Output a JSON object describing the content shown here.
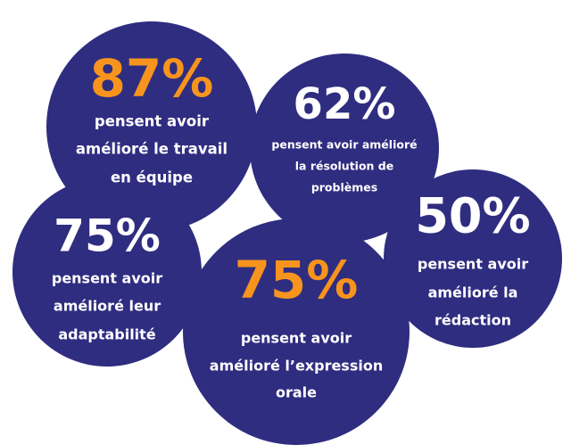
{
  "bubbles": [
    {
      "percent": "87%",
      "color": "#f7941d",
      "lines": [
        "pensent avoir",
        "amélioré le travail",
        "en équipe"
      ]
    },
    {
      "percent": "62%",
      "color": "#ffffff",
      "lines": [
        "pensent avoir amélioré",
        "la résolution de",
        "problèmes"
      ]
    },
    {
      "percent": "75%",
      "color": "#ffffff",
      "lines": [
        "pensent avoir",
        "amélioré leur",
        "adaptabilité"
      ]
    },
    {
      "percent": "75%",
      "color": "#f7941d",
      "lines": [
        "pensent avoir",
        "amélioré l’expression",
        "orale"
      ]
    },
    {
      "percent": "50%",
      "color": "#ffffff",
      "lines": [
        "pensent avoir",
        "amélioré la",
        "rédaction"
      ]
    }
  ]
}
